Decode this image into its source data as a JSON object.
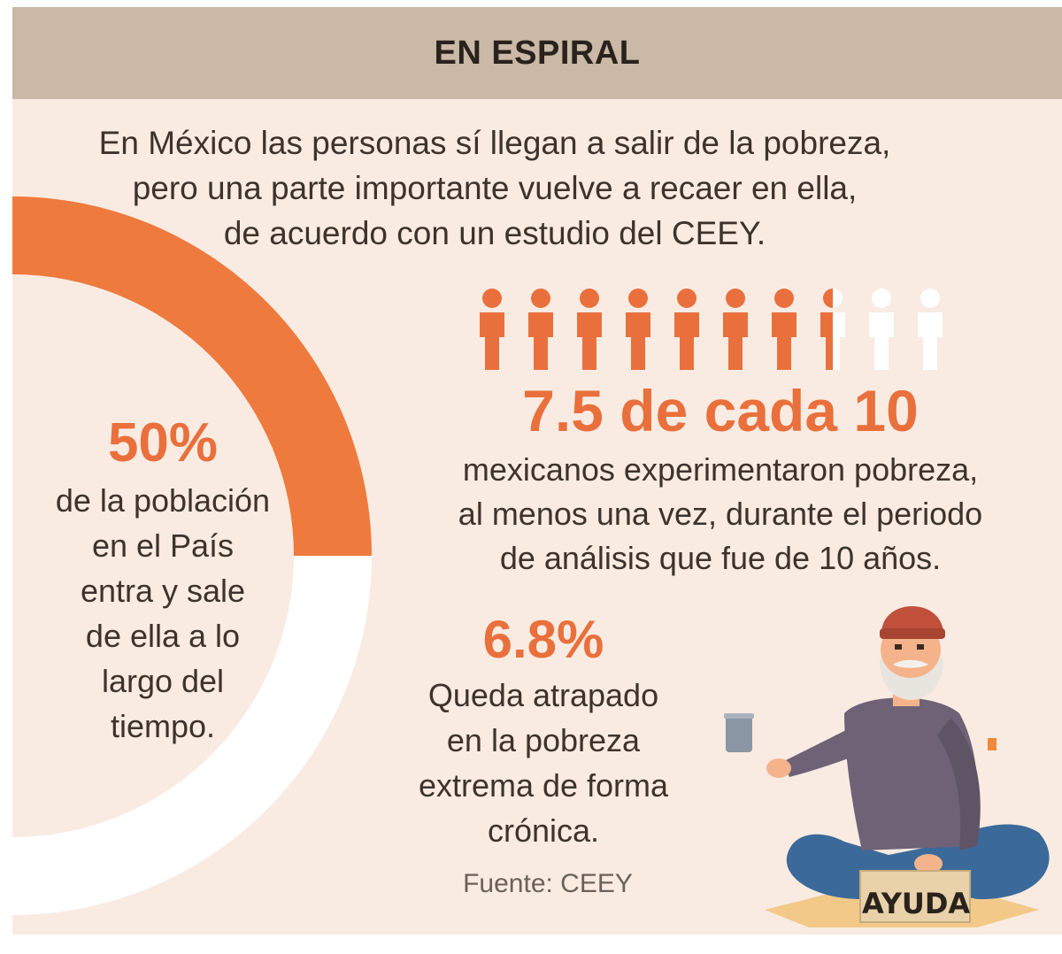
{
  "header": {
    "title": "EN ESPIRAL"
  },
  "intro": {
    "lines": [
      "En México las personas sí llegan a salir de la pobreza,",
      "pero una parte importante vuelve a recaer en ella,",
      "de acuerdo con un estudio del CEEY."
    ]
  },
  "stat_donut": {
    "value": "50%",
    "fraction": 0.5,
    "lines": [
      "de la población",
      "en el País",
      "entra y sale",
      "de ella a lo",
      "largo del",
      "tiempo."
    ]
  },
  "stat_people": {
    "value": "7.5 de cada 10",
    "filled": 7.5,
    "total": 10,
    "lines": [
      "mexicanos experimentaron pobreza,",
      "al menos una vez, durante el periodo",
      "de análisis que fue de 10 años."
    ]
  },
  "stat_extreme": {
    "value": "6.8%",
    "lines": [
      "Queda atrapado",
      "en la pobreza",
      "extrema de forma",
      "crónica."
    ]
  },
  "source": "Fuente: CEEY",
  "illustration": {
    "sign_text": "AYUDA",
    "icon": "beggar-illustration"
  },
  "colors": {
    "accent": "#e9703c",
    "background": "#f9ebe2",
    "header": "#c9b9a6",
    "text": "#3d332c"
  }
}
